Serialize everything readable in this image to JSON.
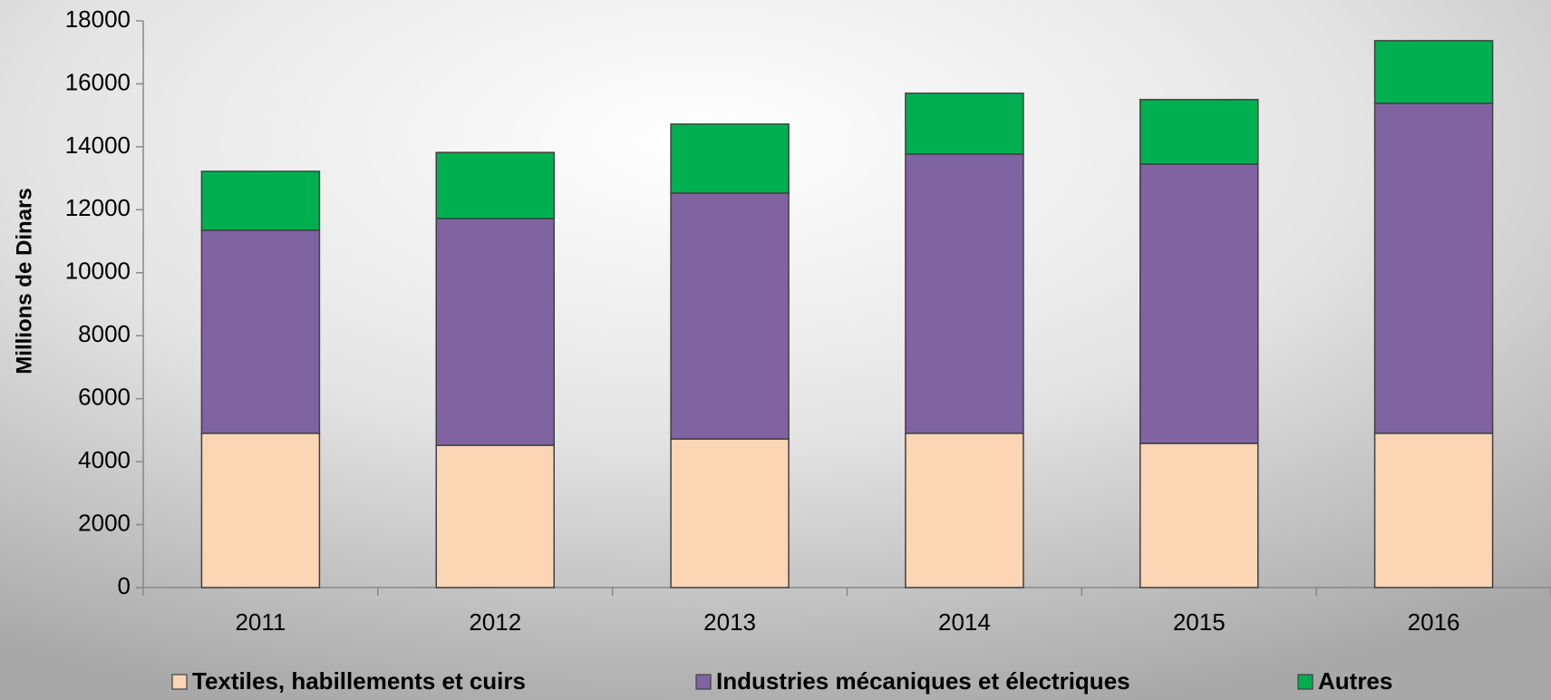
{
  "chart_data": {
    "type": "stacked_bar",
    "y_label": "Millions de Dinars",
    "categories": [
      "2011",
      "2012",
      "2013",
      "2014",
      "2015",
      "2016"
    ],
    "series": [
      {
        "name": "Textiles, habillements et cuirs",
        "color": "#fcd5b5",
        "values": [
          4900,
          4520,
          4720,
          4900,
          4580,
          4900
        ]
      },
      {
        "name": "Industries mécaniques et électriques",
        "color": "#8064a2",
        "values": [
          6450,
          7200,
          7810,
          8870,
          8870,
          10480
        ]
      },
      {
        "name": "Autres",
        "color": "#00b050",
        "values": [
          1870,
          2100,
          2190,
          1930,
          2050,
          1990
        ]
      }
    ],
    "ylim": [
      0,
      18000
    ],
    "yticks": [
      0,
      2000,
      4000,
      6000,
      8000,
      10000,
      12000,
      14000,
      16000,
      18000
    ]
  }
}
